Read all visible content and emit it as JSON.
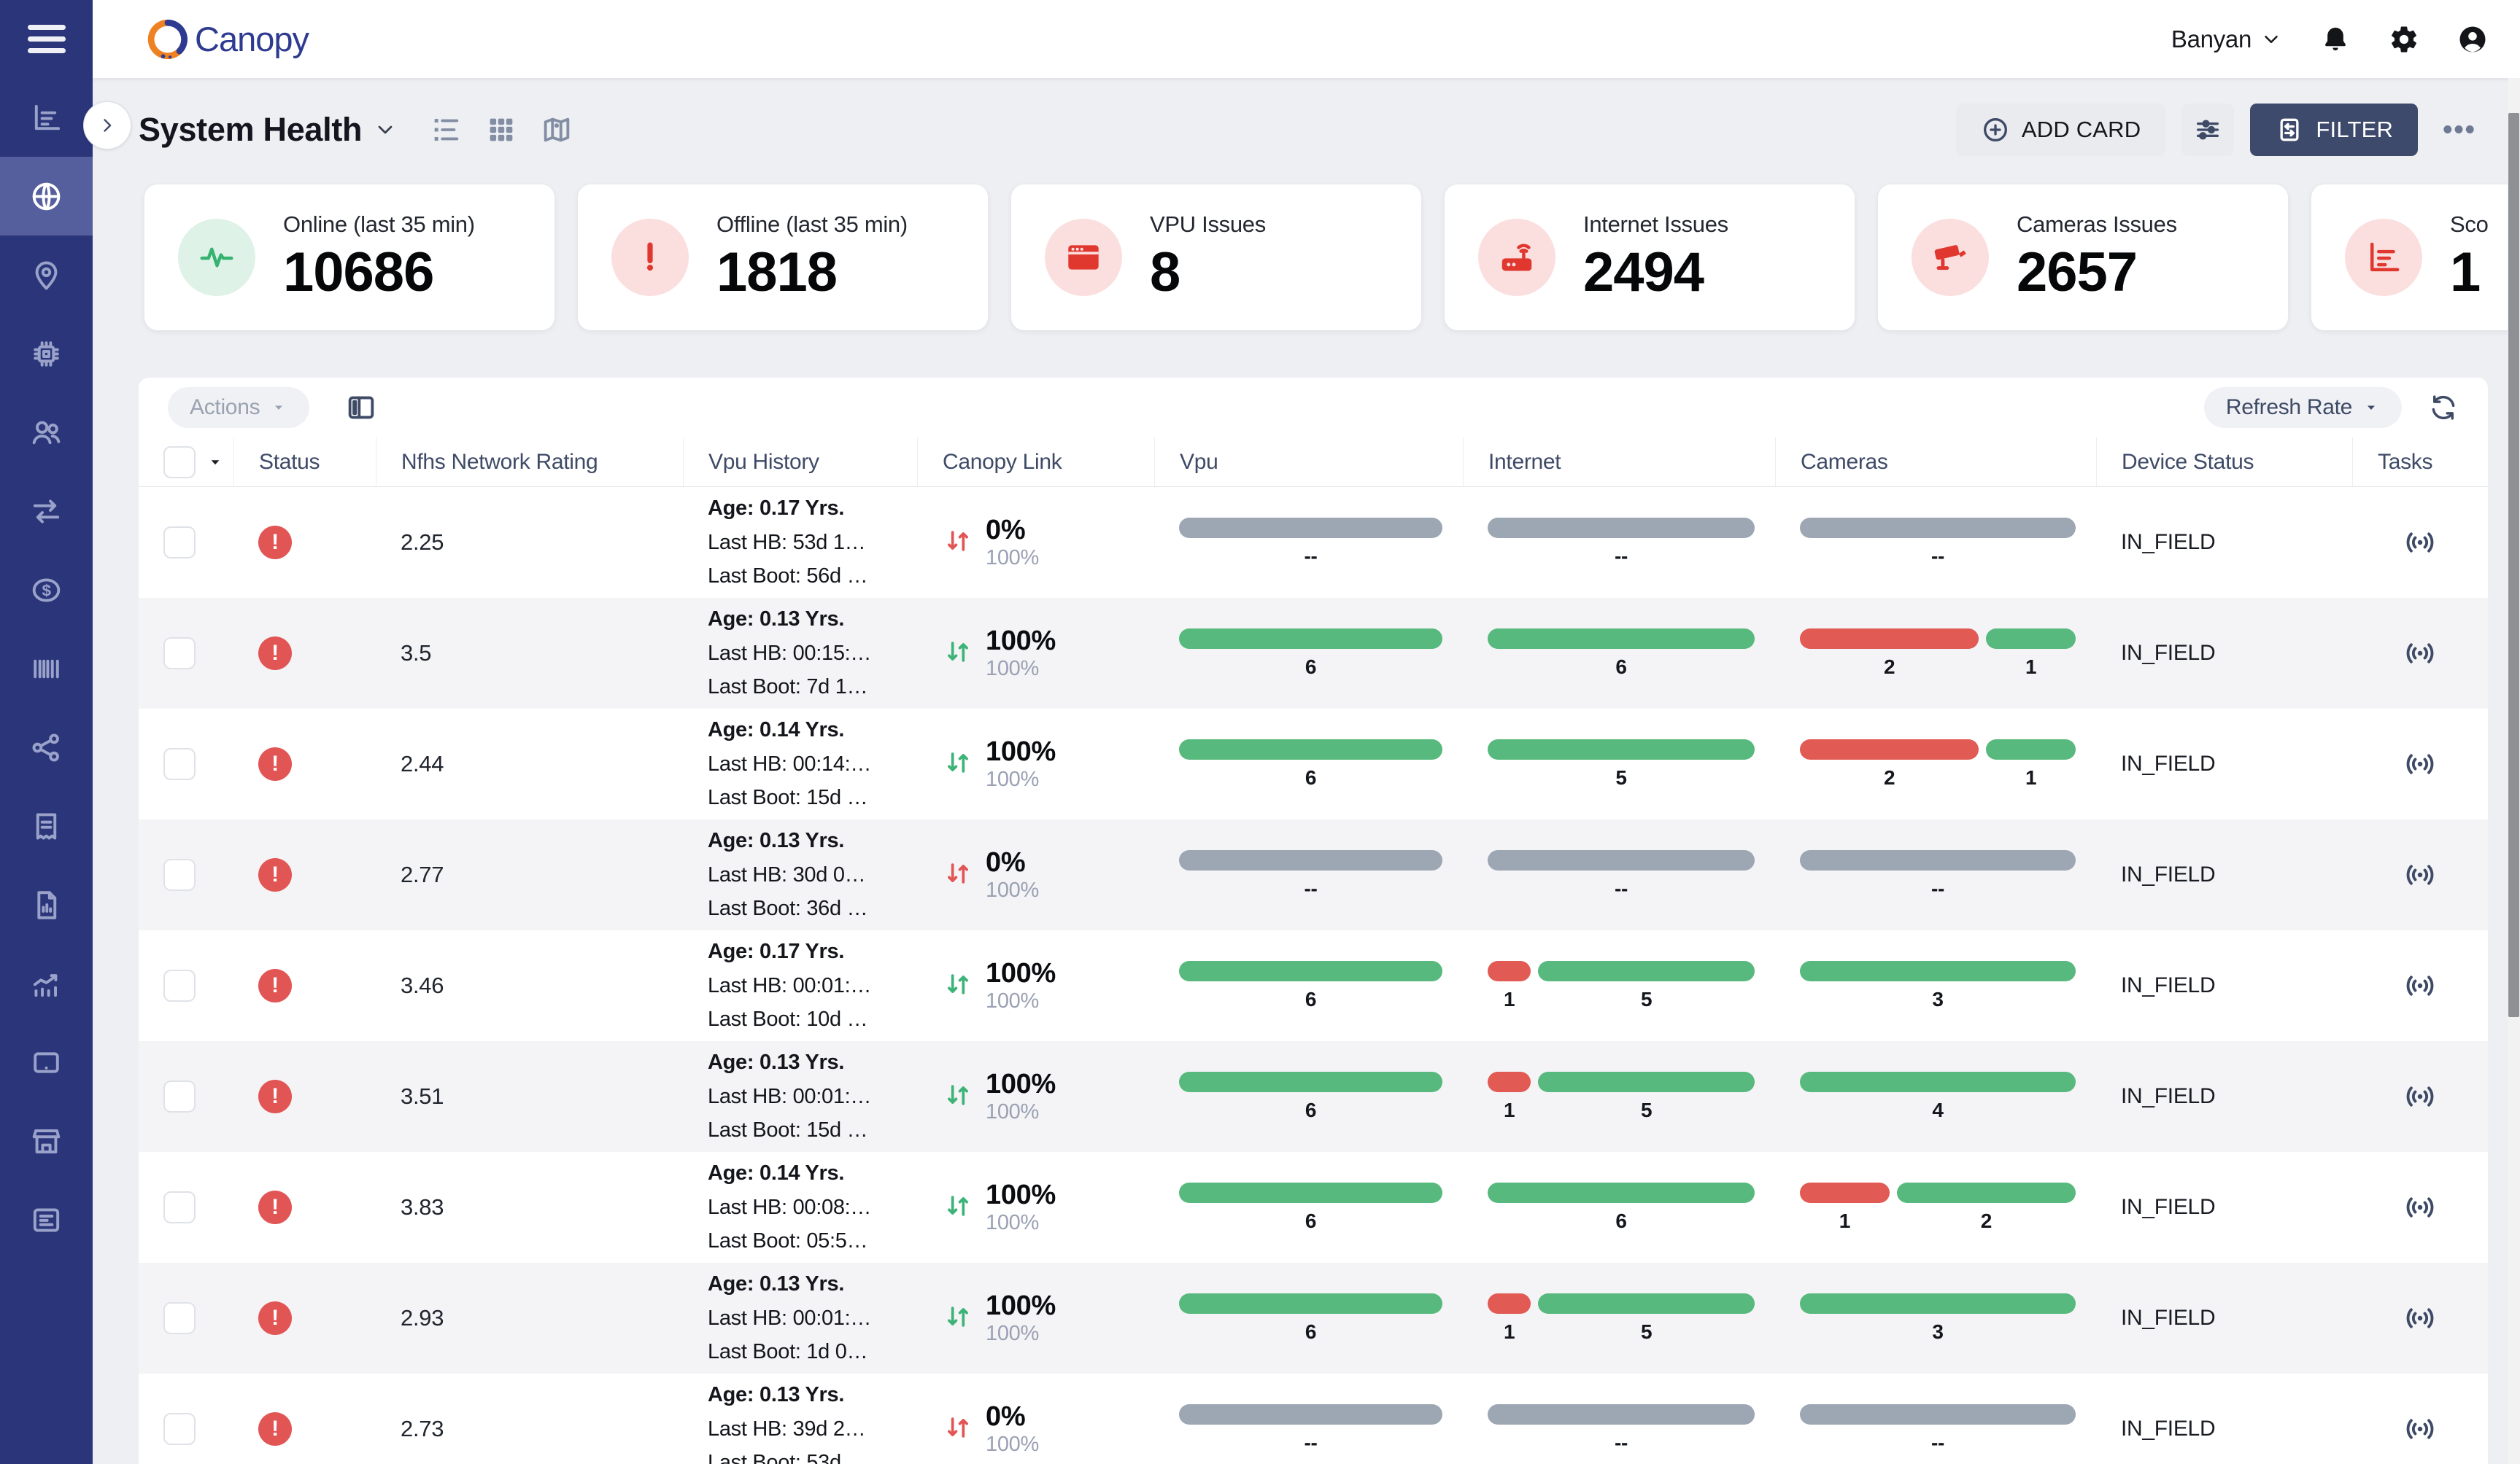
{
  "brand": {
    "logo_text": "Canopy",
    "logo_orange": "#ee8122",
    "logo_blue": "#2e3b90"
  },
  "header": {
    "org_name": "Banyan",
    "icons": [
      "bell-icon",
      "gear-icon",
      "avatar-icon"
    ]
  },
  "sidebar": {
    "items": [
      {
        "icon": "bar-chart-icon",
        "name": "analytics",
        "selected": false
      },
      {
        "icon": "globe-icon",
        "name": "system-health",
        "selected": true
      },
      {
        "icon": "map-pin-icon",
        "name": "locations",
        "selected": false
      },
      {
        "icon": "chip-icon",
        "name": "devices",
        "selected": false
      },
      {
        "icon": "users-icon",
        "name": "users",
        "selected": false
      },
      {
        "icon": "transfer-icon",
        "name": "transfers",
        "selected": false
      },
      {
        "icon": "dollar-icon",
        "name": "billing",
        "selected": false
      },
      {
        "icon": "barcode-icon",
        "name": "inventory",
        "selected": false
      },
      {
        "icon": "network-icon",
        "name": "network",
        "selected": false
      },
      {
        "icon": "receipt-icon",
        "name": "orders",
        "selected": false
      },
      {
        "icon": "file-chart-icon",
        "name": "reports",
        "selected": false
      },
      {
        "icon": "trending-icon",
        "name": "trends",
        "selected": false
      },
      {
        "icon": "tablet-icon",
        "name": "tablets",
        "selected": false
      },
      {
        "icon": "store-icon",
        "name": "store",
        "selected": false
      },
      {
        "icon": "news-icon",
        "name": "documents",
        "selected": false
      }
    ]
  },
  "page": {
    "title": "System Health",
    "add_card_label": "ADD CARD",
    "filter_label": "FILTER",
    "more_label": "•••"
  },
  "cards": [
    {
      "label": "Online (last 35 min)",
      "value": "10686",
      "icon": "pulse-icon",
      "style": "green"
    },
    {
      "label": "Offline (last 35 min)",
      "value": "1818",
      "icon": "exclamation-icon",
      "style": "red"
    },
    {
      "label": "VPU Issues",
      "value": "8",
      "icon": "vpu-icon",
      "style": "red"
    },
    {
      "label": "Internet Issues",
      "value": "2494",
      "icon": "router-icon",
      "style": "red"
    },
    {
      "label": "Cameras Issues",
      "value": "2657",
      "icon": "camera-icon",
      "style": "red"
    },
    {
      "label": "Sco",
      "value": "1",
      "icon": "score-chart-icon",
      "style": "red"
    }
  ],
  "table": {
    "actions_label": "Actions",
    "refresh_label": "Refresh Rate",
    "columns": [
      "Status",
      "Nfhs Network Rating",
      "Vpu History",
      "Canopy Link",
      "Vpu",
      "Internet",
      "Cameras",
      "Device Status",
      "Tasks"
    ],
    "colors": {
      "green": "#57b97d",
      "red": "#e15a54",
      "gray": "#9da7b3",
      "accent_navy": "#2a357a"
    },
    "rows": [
      {
        "rating": "2.25",
        "age": "Age: 0.17 Yrs.",
        "last_hb": "Last HB: 53d 1…",
        "last_boot": "Last Boot: 56d …",
        "link": {
          "dir": "down",
          "value": "0%",
          "sub": "100%"
        },
        "vpu": [
          {
            "c": "gray",
            "l": "--",
            "w": 1
          }
        ],
        "internet": [
          {
            "c": "gray",
            "l": "--",
            "w": 1
          }
        ],
        "cameras": [
          {
            "c": "gray",
            "l": "--",
            "w": 1
          }
        ],
        "device_status": "IN_FIELD"
      },
      {
        "rating": "3.5",
        "age": "Age: 0.13 Yrs.",
        "last_hb": "Last HB: 00:15:…",
        "last_boot": "Last Boot: 7d 1…",
        "link": {
          "dir": "up",
          "value": "100%",
          "sub": "100%"
        },
        "vpu": [
          {
            "c": "green",
            "l": "6",
            "w": 6
          }
        ],
        "internet": [
          {
            "c": "green",
            "l": "6",
            "w": 6
          }
        ],
        "cameras": [
          {
            "c": "red",
            "l": "2",
            "w": 2
          },
          {
            "c": "green",
            "l": "1",
            "w": 1
          }
        ],
        "device_status": "IN_FIELD"
      },
      {
        "rating": "2.44",
        "age": "Age: 0.14 Yrs.",
        "last_hb": "Last HB: 00:14:…",
        "last_boot": "Last Boot: 15d …",
        "link": {
          "dir": "up",
          "value": "100%",
          "sub": "100%"
        },
        "vpu": [
          {
            "c": "green",
            "l": "6",
            "w": 6
          }
        ],
        "internet": [
          {
            "c": "green",
            "l": "5",
            "w": 5
          }
        ],
        "cameras": [
          {
            "c": "red",
            "l": "2",
            "w": 2
          },
          {
            "c": "green",
            "l": "1",
            "w": 1
          }
        ],
        "device_status": "IN_FIELD"
      },
      {
        "rating": "2.77",
        "age": "Age: 0.13 Yrs.",
        "last_hb": "Last HB: 30d 0…",
        "last_boot": "Last Boot: 36d …",
        "link": {
          "dir": "down",
          "value": "0%",
          "sub": "100%"
        },
        "vpu": [
          {
            "c": "gray",
            "l": "--",
            "w": 1
          }
        ],
        "internet": [
          {
            "c": "gray",
            "l": "--",
            "w": 1
          }
        ],
        "cameras": [
          {
            "c": "gray",
            "l": "--",
            "w": 1
          }
        ],
        "device_status": "IN_FIELD"
      },
      {
        "rating": "3.46",
        "age": "Age: 0.17 Yrs.",
        "last_hb": "Last HB: 00:01:…",
        "last_boot": "Last Boot: 10d …",
        "link": {
          "dir": "up",
          "value": "100%",
          "sub": "100%"
        },
        "vpu": [
          {
            "c": "green",
            "l": "6",
            "w": 6
          }
        ],
        "internet": [
          {
            "c": "red",
            "l": "1",
            "w": 1
          },
          {
            "c": "green",
            "l": "5",
            "w": 5
          }
        ],
        "cameras": [
          {
            "c": "green",
            "l": "3",
            "w": 1
          }
        ],
        "device_status": "IN_FIELD"
      },
      {
        "rating": "3.51",
        "age": "Age: 0.13 Yrs.",
        "last_hb": "Last HB: 00:01:…",
        "last_boot": "Last Boot: 15d …",
        "link": {
          "dir": "up",
          "value": "100%",
          "sub": "100%"
        },
        "vpu": [
          {
            "c": "green",
            "l": "6",
            "w": 6
          }
        ],
        "internet": [
          {
            "c": "red",
            "l": "1",
            "w": 1
          },
          {
            "c": "green",
            "l": "5",
            "w": 5
          }
        ],
        "cameras": [
          {
            "c": "green",
            "l": "4",
            "w": 1
          }
        ],
        "device_status": "IN_FIELD"
      },
      {
        "rating": "3.83",
        "age": "Age: 0.14 Yrs.",
        "last_hb": "Last HB: 00:08:…",
        "last_boot": "Last Boot: 05:5…",
        "link": {
          "dir": "up",
          "value": "100%",
          "sub": "100%"
        },
        "vpu": [
          {
            "c": "green",
            "l": "6",
            "w": 6
          }
        ],
        "internet": [
          {
            "c": "green",
            "l": "6",
            "w": 6
          }
        ],
        "cameras": [
          {
            "c": "red",
            "l": "1",
            "w": 1
          },
          {
            "c": "green",
            "l": "2",
            "w": 2
          }
        ],
        "device_status": "IN_FIELD"
      },
      {
        "rating": "2.93",
        "age": "Age: 0.13 Yrs.",
        "last_hb": "Last HB: 00:01:…",
        "last_boot": "Last Boot: 1d 0…",
        "link": {
          "dir": "up",
          "value": "100%",
          "sub": "100%"
        },
        "vpu": [
          {
            "c": "green",
            "l": "6",
            "w": 6
          }
        ],
        "internet": [
          {
            "c": "red",
            "l": "1",
            "w": 1
          },
          {
            "c": "green",
            "l": "5",
            "w": 5
          }
        ],
        "cameras": [
          {
            "c": "green",
            "l": "3",
            "w": 1
          }
        ],
        "device_status": "IN_FIELD"
      },
      {
        "rating": "2.73",
        "age": "Age: 0.13 Yrs.",
        "last_hb": "Last HB: 39d 2…",
        "last_boot": "Last Boot: 53d",
        "link": {
          "dir": "down",
          "value": "0%",
          "sub": "100%"
        },
        "vpu": [
          {
            "c": "gray",
            "l": "--",
            "w": 1
          }
        ],
        "internet": [
          {
            "c": "gray",
            "l": "--",
            "w": 1
          }
        ],
        "cameras": [
          {
            "c": "gray",
            "l": "--",
            "w": 1
          }
        ],
        "device_status": "IN_FIELD"
      }
    ]
  }
}
